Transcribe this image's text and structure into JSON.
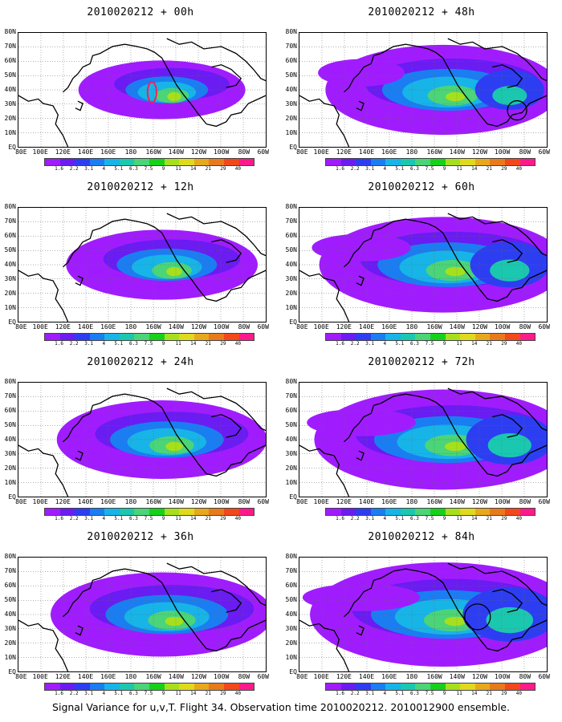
{
  "panels": [
    {
      "title": "2010020212 + 00h",
      "intensity": 0.15
    },
    {
      "title": "2010020212 + 12h",
      "intensity": 0.35
    },
    {
      "title": "2010020212 + 24h",
      "intensity": 0.5
    },
    {
      "title": "2010020212 + 36h",
      "intensity": 0.6
    },
    {
      "title": "2010020212 + 48h",
      "intensity": 0.7
    },
    {
      "title": "2010020212 + 60h",
      "intensity": 0.8
    },
    {
      "title": "2010020212 + 72h",
      "intensity": 0.88
    },
    {
      "title": "2010020212 + 84h",
      "intensity": 0.95
    }
  ],
  "axes": {
    "lat_labels": [
      "80N",
      "70N",
      "60N",
      "50N",
      "40N",
      "30N",
      "20N",
      "10N",
      "EQ"
    ],
    "lon_labels": [
      "80E",
      "100E",
      "120E",
      "140E",
      "160E",
      "180",
      "160W",
      "140W",
      "120W",
      "100W",
      "80W",
      "60W"
    ]
  },
  "colorbar": {
    "labels": [
      "1.6",
      "2.2",
      "3.1",
      "4",
      "5.1",
      "6.3",
      "7.5",
      "9",
      "11",
      "14",
      "21",
      "29",
      "40"
    ],
    "colors": [
      "#a01cff",
      "#6a1cf2",
      "#2d3ef2",
      "#1b7df2",
      "#17b4e8",
      "#1ac8b0",
      "#4bd478",
      "#16d11a",
      "#a6e01c",
      "#e0da1c",
      "#e8a81c",
      "#e87a1c",
      "#f2481c",
      "#ff1a8c"
    ]
  },
  "caption": "Signal Variance for u,v,T. Flight 34. Observation time 2010020212. 2010012900 ensemble."
}
